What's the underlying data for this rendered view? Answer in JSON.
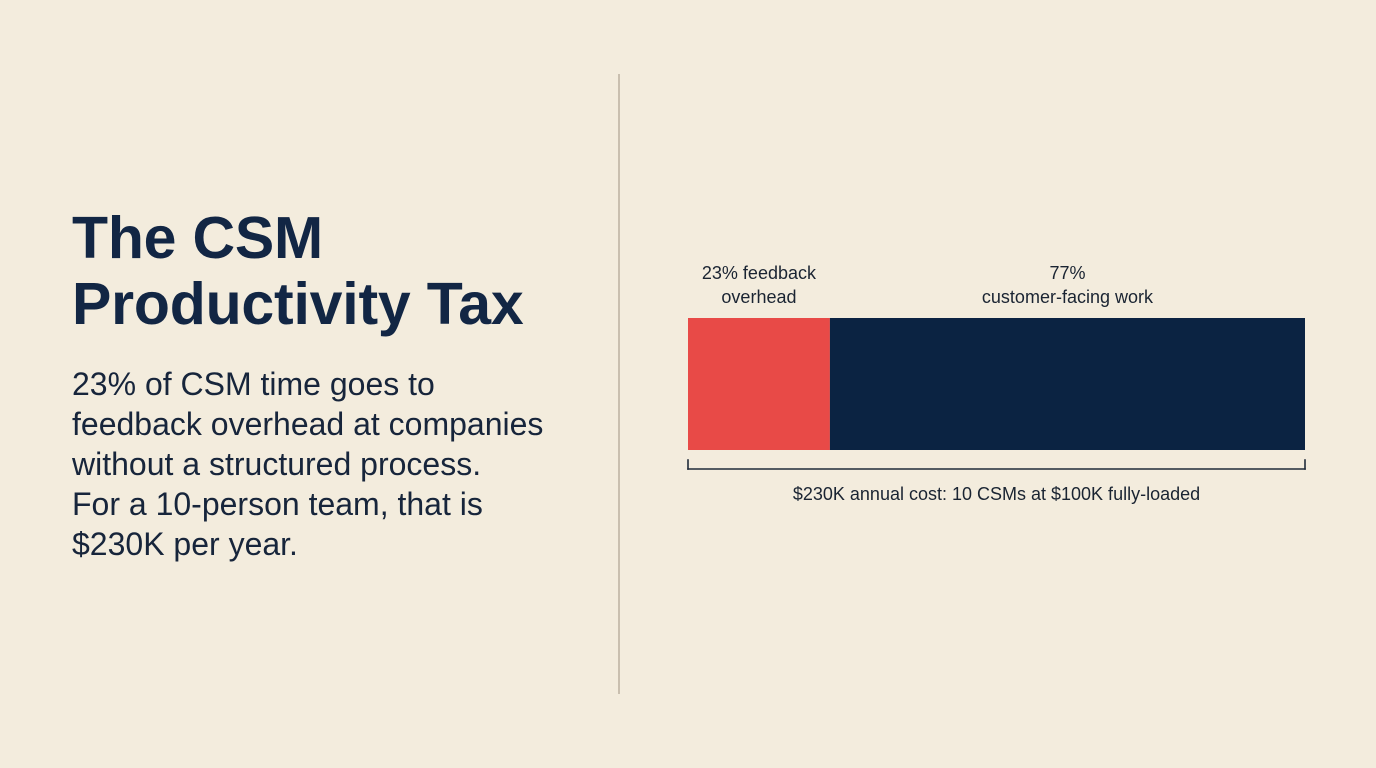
{
  "slide": {
    "title_lines": [
      "The CSM",
      "Productivity Tax"
    ],
    "body_lines": [
      "23% of CSM time goes to",
      "feedback overhead at companies",
      "without a structured process.",
      "For a 10-person team, that is",
      "$230K per year."
    ]
  },
  "chart_data": {
    "type": "bar",
    "orientation": "horizontal-stacked",
    "unit": "%",
    "segments": [
      {
        "value": 23,
        "label_lines": [
          "23% feedback",
          "overhead"
        ],
        "color": "#e84a47"
      },
      {
        "value": 77,
        "label_lines": [
          "77%",
          "customer-facing work"
        ],
        "color": "#0b2342"
      }
    ],
    "annotation": "$230K annual cost: 10 CSMs at $100K fully-loaded",
    "xlim": [
      0,
      100
    ],
    "grid": false
  }
}
